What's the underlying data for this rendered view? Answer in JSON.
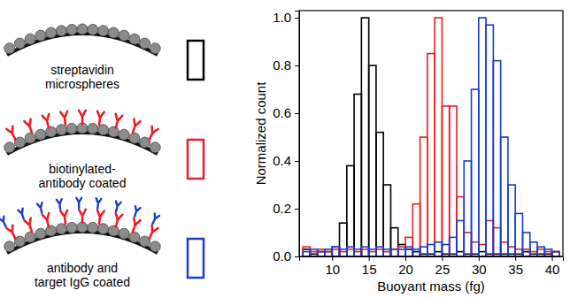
{
  "chart_data": {
    "type": "histogram",
    "x_label": "Buoyant mass (fg)",
    "y_label": "Normalized count",
    "bins": [
      6,
      7,
      8,
      9,
      10,
      11,
      12,
      13,
      14,
      15,
      16,
      17,
      18,
      19,
      20,
      21,
      22,
      23,
      24,
      25,
      26,
      27,
      28,
      29,
      30,
      31,
      32,
      33,
      34,
      35,
      36,
      37,
      38,
      39,
      40,
      41
    ],
    "series": [
      {
        "name": "streptavidin microspheres",
        "color": "#000000",
        "values": [
          0.03,
          0.01,
          0.02,
          0.02,
          0.04,
          0.14,
          0.38,
          0.68,
          1.0,
          0.8,
          0.52,
          0.3,
          0.12,
          0.05,
          0.03,
          0.02,
          0.01,
          0.01,
          0.02,
          0.01,
          0.01,
          0.02,
          0.01,
          0.01,
          0.02,
          0.01,
          0.01,
          0.01,
          0.01,
          0.01,
          0.02,
          0.01,
          0.01,
          0.01,
          0.02
        ]
      },
      {
        "name": "biotinylated-antibody coated",
        "color": "#ee1c24",
        "values": [
          0.04,
          0.02,
          0.03,
          0.02,
          0.03,
          0.02,
          0.03,
          0.02,
          0.03,
          0.02,
          0.03,
          0.02,
          0.03,
          0.04,
          0.08,
          0.22,
          0.5,
          0.85,
          1.0,
          0.63,
          0.63,
          0.25,
          0.1,
          0.06,
          0.05,
          0.15,
          0.12,
          0.06,
          0.04,
          0.03,
          0.03,
          0.02,
          0.03,
          0.02,
          0.02
        ]
      },
      {
        "name": "antibody and target IgG coated",
        "color": "#1a3ccf",
        "values": [
          0.02,
          0.03,
          0.02,
          0.03,
          0.04,
          0.03,
          0.04,
          0.03,
          0.04,
          0.03,
          0.04,
          0.03,
          0.03,
          0.03,
          0.04,
          0.03,
          0.04,
          0.05,
          0.06,
          0.05,
          0.08,
          0.15,
          0.4,
          0.7,
          1.0,
          0.97,
          0.82,
          0.5,
          0.3,
          0.18,
          0.1,
          0.06,
          0.04,
          0.03,
          0.02
        ]
      }
    ],
    "xlim": [
      5.5,
      41.5
    ],
    "xticks": [
      10,
      15,
      20,
      25,
      30,
      35,
      40
    ],
    "ylim": [
      0,
      1.03
    ],
    "yticks": [
      {
        "value": 0,
        "label": "0.0"
      },
      {
        "value": 0.2,
        "label": "0.2"
      },
      {
        "value": 0.4,
        "label": "0.4"
      },
      {
        "value": 0.6,
        "label": "0.6"
      },
      {
        "value": 0.8,
        "label": "0.8"
      },
      {
        "value": 1.0,
        "label": "1.0"
      }
    ],
    "grid": false,
    "legend": "left"
  }
}
